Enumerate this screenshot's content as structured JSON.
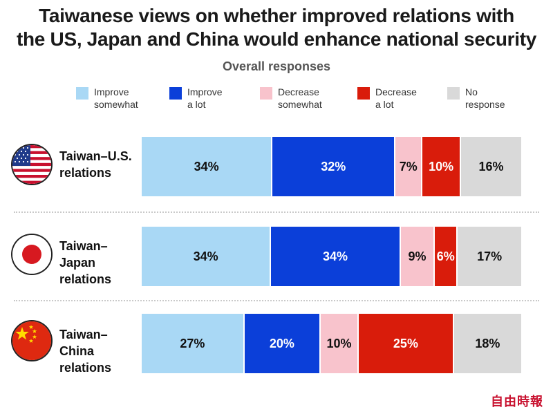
{
  "title_line1": "Taiwanese views on whether improved relations with",
  "title_line2": "the US, Japan and China would enhance national security",
  "subtitle": "Overall responses",
  "legend": [
    {
      "line1": "Improve",
      "line2": "somewhat",
      "color": "#a9d8f5"
    },
    {
      "line1": "Improve",
      "line2": "a lot",
      "color": "#0b3fd9"
    },
    {
      "line1": "Decrease",
      "line2": "somewhat",
      "color": "#f8c3cc"
    },
    {
      "line1": "Decrease",
      "line2": "a lot",
      "color": "#d91c0b"
    },
    {
      "line1": "No",
      "line2": "response",
      "color": "#d9d9d9"
    }
  ],
  "rows": [
    {
      "label_line1": "Taiwan–U.S.",
      "label_line2": "relations",
      "flag": "us-flag-icon"
    },
    {
      "label_line1": "Taiwan–Japan",
      "label_line2": "relations",
      "flag": "japan-flag-icon"
    },
    {
      "label_line1": "Taiwan–China",
      "label_line2": "relations",
      "flag": "china-flag-icon"
    }
  ],
  "chart_data": {
    "type": "bar",
    "orientation": "horizontal",
    "stacked": true,
    "title": "Taiwanese views on whether improved relations with the US, Japan and China would enhance national security",
    "subtitle": "Overall responses",
    "categories": [
      "Taiwan–U.S. relations",
      "Taiwan–Japan relations",
      "Taiwan–China relations"
    ],
    "series": [
      {
        "name": "Improve somewhat",
        "values": [
          34,
          34,
          27
        ],
        "labels": [
          "34%",
          "34%",
          "27%"
        ],
        "color": "#a9d8f5",
        "label_color": "#111111"
      },
      {
        "name": "Improve a lot",
        "values": [
          32,
          34,
          20
        ],
        "labels": [
          "32%",
          "34%",
          "20%"
        ],
        "color": "#0b3fd9",
        "label_color": "#ffffff"
      },
      {
        "name": "Decrease somewhat",
        "values": [
          7,
          9,
          10
        ],
        "labels": [
          "7%",
          "9%",
          "10%"
        ],
        "color": "#f8c3cc",
        "label_color": "#111111"
      },
      {
        "name": "Decrease a lot",
        "values": [
          10,
          6,
          25
        ],
        "labels": [
          "10%",
          "6%",
          "25%"
        ],
        "color": "#d91c0b",
        "label_color": "#ffffff"
      },
      {
        "name": "No response",
        "values": [
          16,
          17,
          18
        ],
        "labels": [
          "16%",
          "17%",
          "18%"
        ],
        "color": "#d9d9d9",
        "label_color": "#111111"
      }
    ],
    "legend_position": "top",
    "grid": false
  },
  "watermark": "自由時報"
}
